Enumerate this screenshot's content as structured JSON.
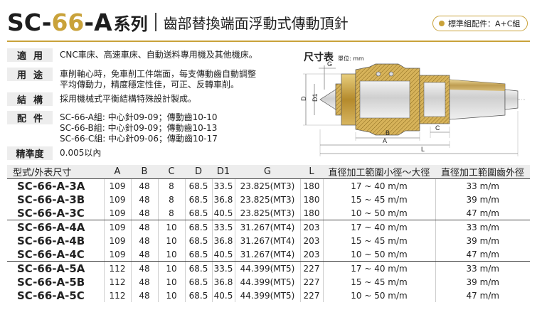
{
  "header": {
    "model_pre": "SC-",
    "model_hl": "66",
    "model_post": "-A",
    "series": "系列",
    "subtitle": "齒部替換端面浮動式傳動頂針",
    "badge": "標準組配件：A+C組"
  },
  "specs": [
    {
      "label": "適用",
      "lines": [
        "CNC車床、高速車床、自動送料專用機及其他機床。"
      ]
    },
    {
      "label": "用途",
      "lines": [
        "車削軸心時，免車削工件端面，每支傳動齒自動調整",
        "平均傳動力，精度穩定性佳，可正、反轉車削。"
      ]
    },
    {
      "label": "結構",
      "lines": [
        "採用機械式平衡結構特殊設計製成。"
      ]
    },
    {
      "label": "配件",
      "lines": [
        "SC-66-A組: 中心針09-09；傳動齒10-10",
        "SC-66-B組: 中心針09-09；傳動齒10-13",
        "SC-66-C組: 中心針09-06；傳動齒10-17"
      ]
    },
    {
      "label": "精準度",
      "lines": [
        "0.005以內"
      ]
    }
  ],
  "dimension": {
    "title": "尺寸表",
    "unit": "單位: mm",
    "labels": {
      "G": "G",
      "D": "D",
      "D1": "D1",
      "A": "A",
      "B": "B",
      "C": "C",
      "L": "L"
    }
  },
  "table": {
    "headers": [
      "型式/外表尺寸",
      "A",
      "B",
      "C",
      "D",
      "D1",
      "G",
      "L",
      "直徑加工範圍小徑～大徑",
      "直徑加工範圍齒外徑"
    ],
    "groups": [
      [
        [
          "SC-66-A-3A",
          "109",
          "48",
          "8",
          "68.5",
          "33.5",
          "23.825(MT3)",
          "180",
          "17 ~ 40 m/m",
          "33 m/m"
        ],
        [
          "SC-66-A-3B",
          "109",
          "48",
          "8",
          "68.5",
          "36.8",
          "23.825(MT3)",
          "180",
          "15 ~ 45 m/m",
          "39 m/m"
        ],
        [
          "SC-66-A-3C",
          "109",
          "48",
          "8",
          "68.5",
          "40.5",
          "23.825(MT3)",
          "180",
          "10 ~ 50 m/m",
          "47 m/m"
        ]
      ],
      [
        [
          "SC-66-A-4A",
          "109",
          "48",
          "10",
          "68.5",
          "33.5",
          "31.267(MT4)",
          "203",
          "17 ~ 40 m/m",
          "33 m/m"
        ],
        [
          "SC-66-A-4B",
          "109",
          "48",
          "10",
          "68.5",
          "36.8",
          "31.267(MT4)",
          "203",
          "15 ~ 45 m/m",
          "39 m/m"
        ],
        [
          "SC-66-A-4C",
          "109",
          "48",
          "10",
          "68.5",
          "40.5",
          "31.267(MT4)",
          "203",
          "10 ~ 50 m/m",
          "47 m/m"
        ]
      ],
      [
        [
          "SC-66-A-5A",
          "112",
          "48",
          "10",
          "68.5",
          "33.5",
          "44.399(MT5)",
          "227",
          "17 ~ 40 m/m",
          "33 m/m"
        ],
        [
          "SC-66-A-5B",
          "112",
          "48",
          "10",
          "68.5",
          "36.8",
          "44.399(MT5)",
          "227",
          "15 ~ 45 m/m",
          "39 m/m"
        ],
        [
          "SC-66-A-5C",
          "112",
          "48",
          "10",
          "68.5",
          "40.5",
          "44.399(MT5)",
          "227",
          "10 ~ 50 m/m",
          "47 m/m"
        ]
      ]
    ]
  }
}
